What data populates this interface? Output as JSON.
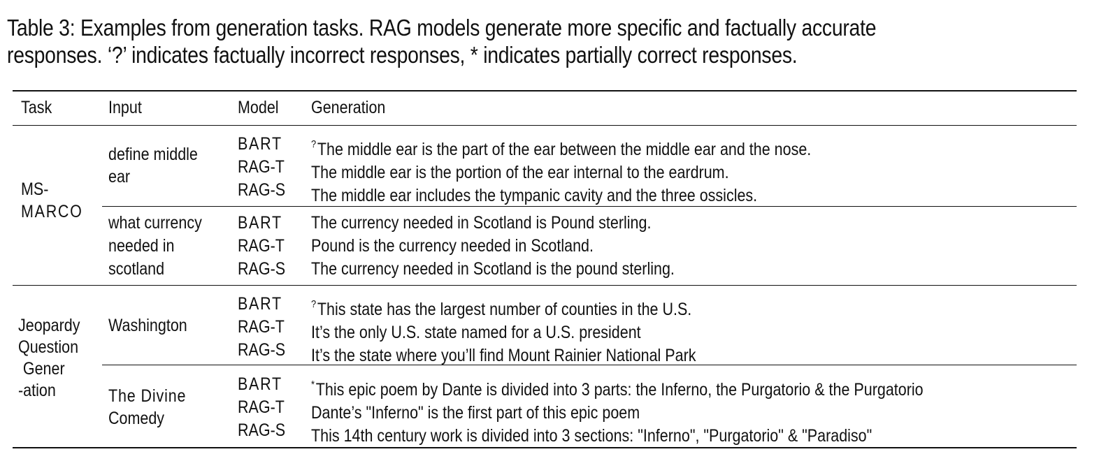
{
  "caption": {
    "line1": "Table 3: Examples from generation tasks. RAG models generate more specific and factually accurate",
    "line2": "responses. ‘?’ indicates factually incorrect responses, * indicates partially correct responses."
  },
  "table": {
    "headers": [
      "Task",
      "Input",
      "Model",
      "Generation"
    ],
    "sections": [
      {
        "task_lines": [
          "MS-",
          "MARCO"
        ],
        "groups": [
          {
            "input_lines": [
              "define middle",
              "ear"
            ],
            "rows": [
              {
                "model": "BART",
                "mark": "?",
                "generation": "The middle ear is the part of the ear between the middle ear and the nose."
              },
              {
                "model": "RAG-T",
                "mark": "",
                "generation": "The middle ear is the portion of the ear internal to the eardrum."
              },
              {
                "model": "RAG-S",
                "mark": "",
                "generation": "The middle ear includes the tympanic cavity and the three ossicles."
              }
            ]
          },
          {
            "input_lines": [
              "what currency",
              "needed in",
              "scotland"
            ],
            "rows": [
              {
                "model": "BART",
                "mark": "",
                "generation": "The currency needed in Scotland is Pound sterling."
              },
              {
                "model": "RAG-T",
                "mark": "",
                "generation": "Pound is the currency needed in Scotland."
              },
              {
                "model": "RAG-S",
                "mark": "",
                "generation": "The currency needed in Scotland is the pound sterling."
              }
            ]
          }
        ]
      },
      {
        "task_lines": [
          "Jeopardy",
          "Question",
          "Gener",
          "-ation"
        ],
        "groups": [
          {
            "input_lines": [
              "Washington"
            ],
            "rows": [
              {
                "model": "BART",
                "mark": "?",
                "generation": "This state has the largest number of counties in the U.S."
              },
              {
                "model": "RAG-T",
                "mark": "",
                "generation": "It’s the only U.S. state named for a U.S. president"
              },
              {
                "model": "RAG-S",
                "mark": "",
                "generation": "It’s the state where you’ll find Mount Rainier National Park"
              }
            ]
          },
          {
            "input_lines": [
              "The Divine",
              "Comedy"
            ],
            "rows": [
              {
                "model": "BART",
                "mark": "*",
                "generation": "This epic poem by Dante is divided into 3 parts: the Inferno, the Purgatorio & the Purgatorio"
              },
              {
                "model": "RAG-T",
                "mark": "",
                "generation": "Dante’s \"Inferno\" is the first part of this epic poem"
              },
              {
                "model": "RAG-S",
                "mark": "",
                "generation": "This 14th century work is divided into 3 sections: \"Inferno\", \"Purgatorio\" & \"Paradiso\""
              }
            ]
          }
        ]
      }
    ]
  }
}
